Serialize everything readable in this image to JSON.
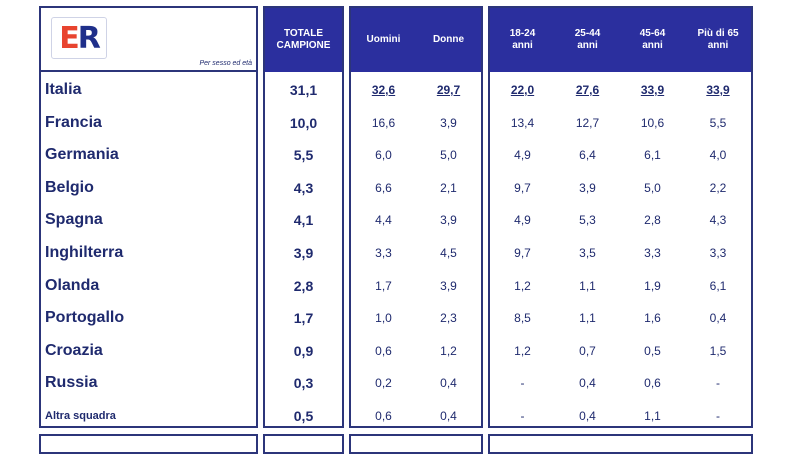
{
  "header": {
    "logo_text_e": "E",
    "logo_text_r": "R",
    "logo_caption": "Per sesso ed età",
    "total_label": "TOTALE\nCAMPIONE",
    "sex_labels": [
      "Uomini",
      "Donne"
    ],
    "age_labels": [
      "18-24\nanni",
      "25-44\nanni",
      "45-64\nanni",
      "Più di 65\nanni"
    ]
  },
  "rows": [
    {
      "country": "Italia",
      "total": "31,1",
      "men": "32,6",
      "women": "29,7",
      "a1": "22,0",
      "a2": "27,6",
      "a3": "33,9",
      "a4": "33,9"
    },
    {
      "country": "Francia",
      "total": "10,0",
      "men": "16,6",
      "women": "3,9",
      "a1": "13,4",
      "a2": "12,7",
      "a3": "10,6",
      "a4": "5,5"
    },
    {
      "country": "Germania",
      "total": "5,5",
      "men": "6,0",
      "women": "5,0",
      "a1": "4,9",
      "a2": "6,4",
      "a3": "6,1",
      "a4": "4,0"
    },
    {
      "country": "Belgio",
      "total": "4,3",
      "men": "6,6",
      "women": "2,1",
      "a1": "9,7",
      "a2": "3,9",
      "a3": "5,0",
      "a4": "2,2"
    },
    {
      "country": "Spagna",
      "total": "4,1",
      "men": "4,4",
      "women": "3,9",
      "a1": "4,9",
      "a2": "5,3",
      "a3": "2,8",
      "a4": "4,3"
    },
    {
      "country": "Inghilterra",
      "total": "3,9",
      "men": "3,3",
      "women": "4,5",
      "a1": "9,7",
      "a2": "3,5",
      "a3": "3,3",
      "a4": "3,3"
    },
    {
      "country": "Olanda",
      "total": "2,8",
      "men": "1,7",
      "women": "3,9",
      "a1": "1,2",
      "a2": "1,1",
      "a3": "1,9",
      "a4": "6,1"
    },
    {
      "country": "Portogallo",
      "total": "1,7",
      "men": "1,0",
      "women": "2,3",
      "a1": "8,5",
      "a2": "1,1",
      "a3": "1,6",
      "a4": "0,4"
    },
    {
      "country": "Croazia",
      "total": "0,9",
      "men": "0,6",
      "women": "1,2",
      "a1": "1,2",
      "a2": "0,7",
      "a3": "0,5",
      "a4": "1,5"
    },
    {
      "country": "Russia",
      "total": "0,3",
      "men": "0,2",
      "women": "0,4",
      "a1": "-",
      "a2": "0,4",
      "a3": "0,6",
      "a4": "-"
    },
    {
      "country": "Altra squadra",
      "total": "0,5",
      "men": "0,6",
      "women": "0,4",
      "a1": "-",
      "a2": "0,4",
      "a3": "1,1",
      "a4": "-"
    }
  ]
}
